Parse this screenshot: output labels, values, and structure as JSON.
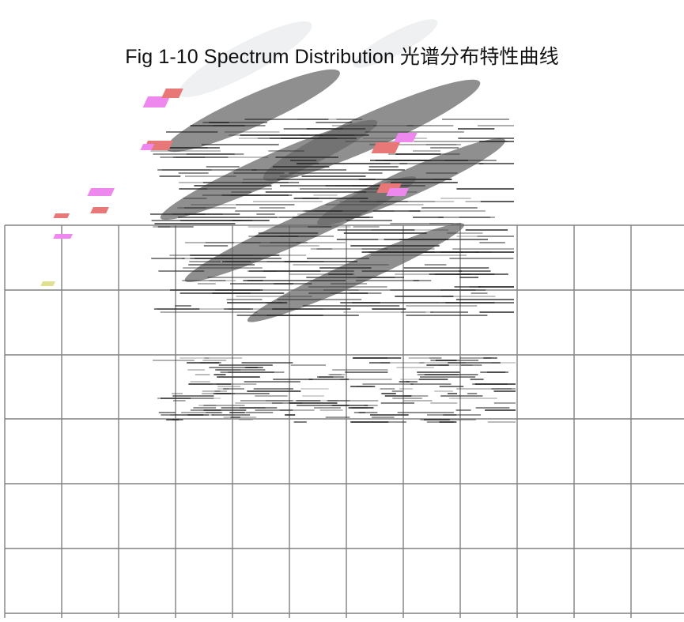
{
  "figure": {
    "title": "Fig 1-10 Spectrum Distribution 光谱分布特性曲线"
  },
  "grid": {
    "line_color": "#808080",
    "background": "#ffffff"
  },
  "artifact": {
    "stroke_color": "#2b2b2b",
    "accent_pink": "#ee88ee",
    "accent_red": "#e87878",
    "accent_yellow": "#e0e090"
  }
}
